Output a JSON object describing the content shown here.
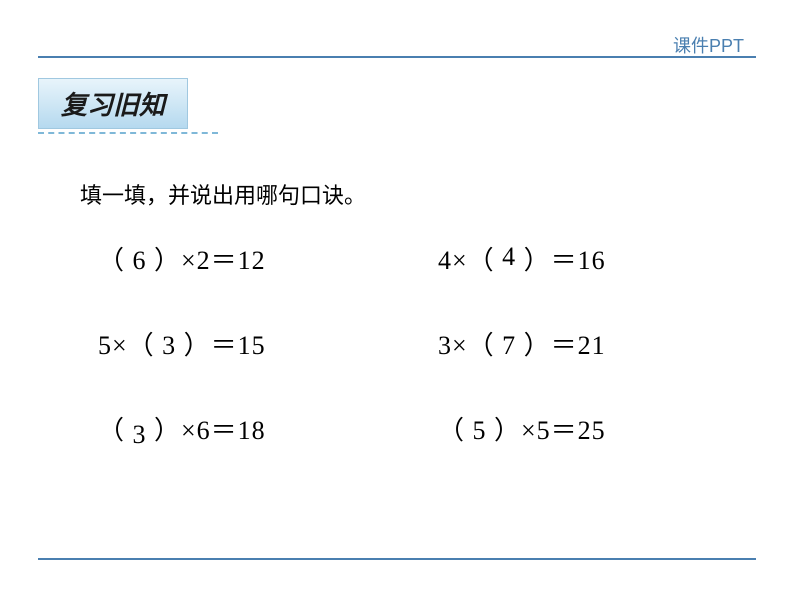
{
  "colors": {
    "rule": "#4a7fb0",
    "watermark_text": "#4a7fb0",
    "title_bg_top": "#e8f4fb",
    "title_bg_mid": "#cfe7f5",
    "title_bg_bot": "#b5d9ef",
    "title_border": "#a0c8e0",
    "dashed": "#7fb8d8",
    "text": "#000000",
    "background": "#ffffff"
  },
  "typography": {
    "watermark_fontsize": 18,
    "title_fontsize": 26,
    "instruction_fontsize": 22,
    "equation_fontsize": 26
  },
  "watermark": "课件PPT",
  "section_title": "复习旧知",
  "instruction": "填一填，并说出用哪句口诀。",
  "equations": [
    {
      "prefix": "（ ",
      "answer": "6",
      "answer_class": "",
      "suffix": " ）×2＝12"
    },
    {
      "prefix": "4×（ ",
      "answer": "4",
      "answer_class": "ans-raised",
      "suffix": " ）＝16"
    },
    {
      "prefix": "5×（ ",
      "answer": "3",
      "answer_class": "",
      "suffix": " ）＝15"
    },
    {
      "prefix": "3×（ ",
      "answer": "7",
      "answer_class": "",
      "suffix": " ）＝21"
    },
    {
      "prefix": "（ ",
      "answer": "3",
      "answer_class": "ans-low",
      "suffix": " ）×6＝18"
    },
    {
      "prefix": "（ ",
      "answer": "5",
      "answer_class": "",
      "suffix": " ）×5＝25"
    }
  ]
}
